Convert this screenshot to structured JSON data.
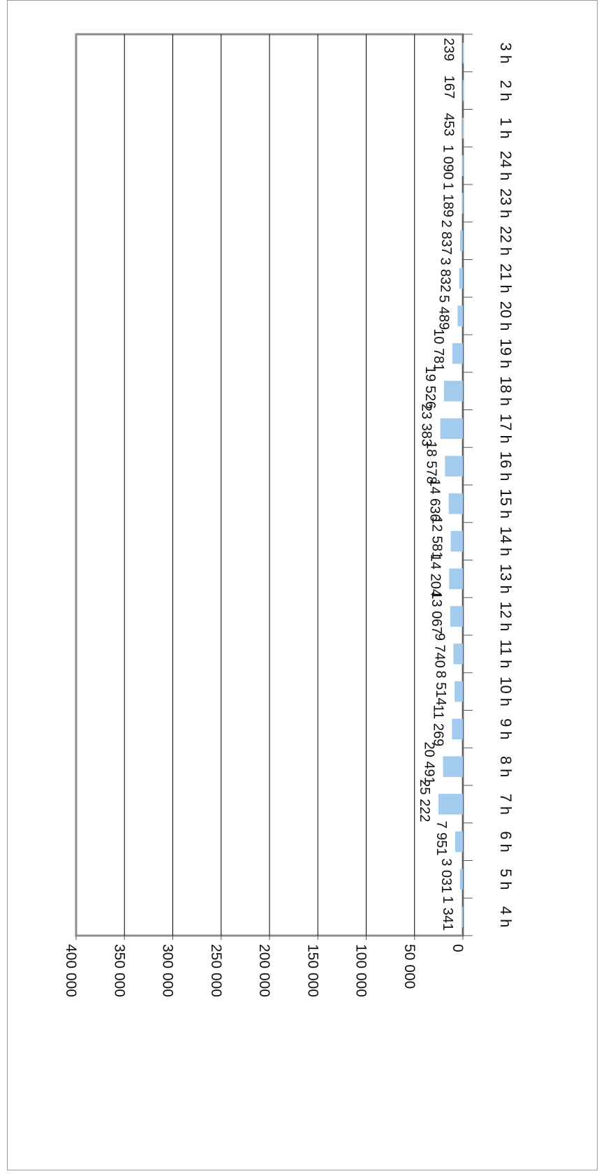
{
  "chart_data": {
    "type": "bar",
    "orientation": "horizontal",
    "categories": [
      "4 h",
      "5 h",
      "6 h",
      "7 h",
      "8 h",
      "9 h",
      "10 h",
      "11 h",
      "12 h",
      "13 h",
      "14 h",
      "15 h",
      "16 h",
      "17 h",
      "18 h",
      "19 h",
      "20 h",
      "21 h",
      "22 h",
      "23 h",
      "24 h",
      "1 h",
      "2 h",
      "3 h"
    ],
    "values": [
      1341,
      3031,
      7951,
      25222,
      20491,
      11269,
      8514,
      9740,
      13067,
      14204,
      12581,
      14636,
      18578,
      23383,
      19526,
      10781,
      5489,
      3832,
      2837,
      1189,
      1090,
      453,
      167,
      239
    ],
    "value_labels": [
      "1 341",
      "3 031",
      "7 951",
      "25 222",
      "20 491",
      "11 269",
      "8 514",
      "9 740",
      "13 067",
      "14 204",
      "12 581",
      "14 636",
      "18 578",
      "23 383",
      "19 526",
      "10 781",
      "5 489",
      "3 832",
      "2 837",
      "1 189",
      "1 090",
      "453",
      "167",
      "239"
    ],
    "axis": {
      "ticks": [
        0,
        50000,
        100000,
        150000,
        200000,
        250000,
        300000,
        350000,
        400000
      ],
      "tick_labels": [
        "0",
        "50 000",
        "100 000",
        "150 000",
        "200 000",
        "250 000",
        "300 000",
        "350 000",
        "400 000"
      ],
      "min": 0,
      "max": 400000
    },
    "grid": true,
    "legend": "none",
    "colors": {
      "bar": "#a3cbee",
      "grid": "#000000",
      "plot_border": "#8c8c8c"
    }
  }
}
